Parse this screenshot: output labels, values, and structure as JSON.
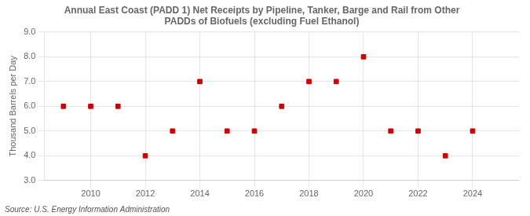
{
  "chart_data": {
    "type": "scatter",
    "title": "Annual East Coast (PADD 1) Net Receipts by Pipeline, Tanker, Barge and Rail from Other\nPADDs of Biofuels (excluding Fuel Ethanol)",
    "ylabel": "Thousand Barrels per Day",
    "annotations": [
      "Source: U.S. Energy Information Administration"
    ],
    "x": [
      2009,
      2010,
      2011,
      2012,
      2013,
      2014,
      2015,
      2016,
      2017,
      2018,
      2019,
      2020,
      2021,
      2022,
      2023,
      2024
    ],
    "values": [
      6.0,
      6.0,
      6.0,
      4.0,
      5.0,
      7.0,
      5.0,
      5.0,
      6.0,
      7.0,
      7.0,
      8.0,
      5.0,
      5.0,
      4.0,
      5.0
    ],
    "color": "#cc0000",
    "marker": "square",
    "xlim": [
      2008.3,
      2025.7
    ],
    "xticks": [
      2010,
      2012,
      2014,
      2016,
      2018,
      2020,
      2022,
      2024
    ],
    "ylim": [
      3.0,
      9.0
    ],
    "yticks": [
      {
        "value": 3.0,
        "label": "3.0"
      },
      {
        "value": 4.0,
        "label": "4.0"
      },
      {
        "value": 5.0,
        "label": "5.0"
      },
      {
        "value": 6.0,
        "label": "6.0"
      },
      {
        "value": 7.0,
        "label": "7.0"
      },
      {
        "value": 8.0,
        "label": "8.0"
      },
      {
        "value": 9.0,
        "label": "9.0"
      }
    ],
    "grid": true
  }
}
